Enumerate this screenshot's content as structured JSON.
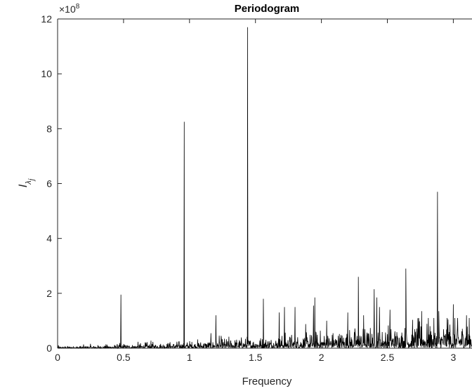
{
  "chart_data": {
    "type": "line",
    "title": "Periodogram",
    "xlabel": "Frequency",
    "ylabel": "I",
    "ylabel_subscript": "λ",
    "ylabel_subsubscript": "j",
    "y_exponent_prefix": "×10",
    "y_exponent": "8",
    "xlim": [
      0,
      3.14159
    ],
    "ylim": [
      0,
      12
    ],
    "x_ticks": [
      0,
      0.5,
      1,
      1.5,
      2,
      2.5,
      3
    ],
    "x_tick_labels": [
      "0",
      "0.5",
      "1",
      "1.5",
      "2",
      "2.5",
      "3"
    ],
    "y_ticks": [
      0,
      2,
      4,
      6,
      8,
      10,
      12
    ],
    "y_tick_labels": [
      "0",
      "2",
      "4",
      "6",
      "8",
      "10",
      "12"
    ],
    "grid": false,
    "series": [
      {
        "color": "#000000",
        "peaks": [
          [
            0.48,
            1.95
          ],
          [
            0.96,
            8.25
          ],
          [
            1.2,
            1.2
          ],
          [
            1.44,
            11.7
          ],
          [
            1.56,
            1.8
          ],
          [
            1.68,
            1.3
          ],
          [
            1.72,
            1.5
          ],
          [
            1.8,
            1.5
          ],
          [
            1.94,
            1.55
          ],
          [
            1.95,
            1.85
          ],
          [
            2.04,
            1.0
          ],
          [
            2.2,
            1.3
          ],
          [
            2.28,
            2.6
          ],
          [
            2.32,
            1.2
          ],
          [
            2.4,
            2.15
          ],
          [
            2.42,
            1.85
          ],
          [
            2.44,
            1.5
          ],
          [
            2.52,
            1.4
          ],
          [
            2.64,
            2.9
          ],
          [
            2.76,
            1.35
          ],
          [
            2.88,
            5.7
          ],
          [
            2.89,
            1.35
          ],
          [
            2.96,
            1.05
          ],
          [
            3.0,
            1.6
          ],
          [
            3.1,
            1.2
          ]
        ]
      }
    ]
  }
}
